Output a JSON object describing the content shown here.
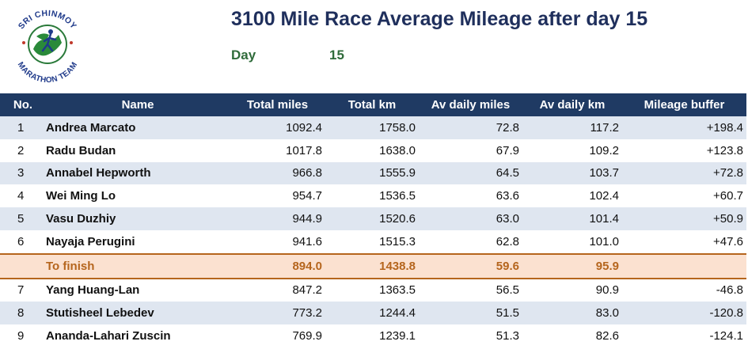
{
  "header": {
    "logo_text_top": "SRI CHINMOY",
    "logo_text_bottom": "MARATHON TEAM",
    "title": "3100 Mile Race Average Mileage after day 15",
    "day_label": "Day",
    "day_value": "15"
  },
  "table": {
    "columns": [
      "No.",
      "Name",
      "Total miles",
      "Total km",
      "Av daily miles",
      "Av daily km",
      "Mileage buffer"
    ],
    "rows": [
      {
        "no": "1",
        "name": "Andrea Marcato",
        "miles": "1092.4",
        "km": "1758.0",
        "av_miles": "72.8",
        "av_km": "117.2",
        "buffer": "+198.4"
      },
      {
        "no": "2",
        "name": "Radu Budan",
        "miles": "1017.8",
        "km": "1638.0",
        "av_miles": "67.9",
        "av_km": "109.2",
        "buffer": "+123.8"
      },
      {
        "no": "3",
        "name": "Annabel Hepworth",
        "miles": "966.8",
        "km": "1555.9",
        "av_miles": "64.5",
        "av_km": "103.7",
        "buffer": "+72.8"
      },
      {
        "no": "4",
        "name": "Wei Ming Lo",
        "miles": "954.7",
        "km": "1536.5",
        "av_miles": "63.6",
        "av_km": "102.4",
        "buffer": "+60.7"
      },
      {
        "no": "5",
        "name": "Vasu Duzhiy",
        "miles": "944.9",
        "km": "1520.6",
        "av_miles": "63.0",
        "av_km": "101.4",
        "buffer": "+50.9"
      },
      {
        "no": "6",
        "name": "Nayaja Perugini",
        "miles": "941.6",
        "km": "1515.3",
        "av_miles": "62.8",
        "av_km": "101.0",
        "buffer": "+47.6"
      }
    ],
    "finish": {
      "name": "To finish",
      "miles": "894.0",
      "km": "1438.8",
      "av_miles": "59.6",
      "av_km": "95.9"
    },
    "rows_after": [
      {
        "no": "7",
        "name": "Yang Huang-Lan",
        "miles": "847.2",
        "km": "1363.5",
        "av_miles": "56.5",
        "av_km": "90.9",
        "buffer": "-46.8"
      },
      {
        "no": "8",
        "name": "Stutisheel Lebedev",
        "miles": "773.2",
        "km": "1244.4",
        "av_miles": "51.5",
        "av_km": "83.0",
        "buffer": "-120.8"
      },
      {
        "no": "9",
        "name": "Ananda-Lahari Zuscin",
        "miles": "769.9",
        "km": "1239.1",
        "av_miles": "51.3",
        "av_km": "82.6",
        "buffer": "-124.1"
      }
    ]
  },
  "colors": {
    "header_bg": "#1f3a63",
    "title": "#1f2f5c",
    "day": "#2f6b3a",
    "finish_bg": "#fbe1d0",
    "finish_text": "#b5651d",
    "row_shade": "#dfe6f0"
  }
}
